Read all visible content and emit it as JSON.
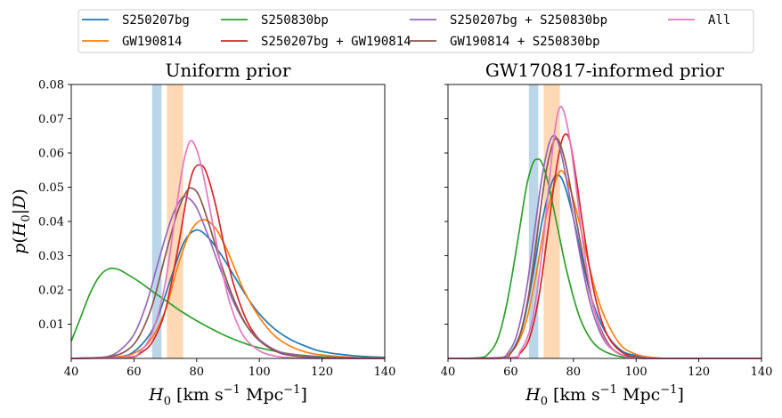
{
  "legend": {
    "placement": "top-center",
    "entries": [
      {
        "label": "S250207bg",
        "color": "#1f77b4"
      },
      {
        "label": "GW190814",
        "color": "#ff7f0e"
      },
      {
        "label": "S250830bp",
        "color": "#2ca02c"
      },
      {
        "label": "S250207bg + GW190814",
        "color": "#d62728"
      },
      {
        "label": "S250207bg + S250830bp",
        "color": "#9467bd"
      },
      {
        "label": "GW190814 + S250830bp",
        "color": "#8c564b"
      },
      {
        "label": "All",
        "color": "#e377c2"
      }
    ]
  },
  "chart_data": [
    {
      "type": "line",
      "title": "Uniform prior",
      "xlabel": "H0 [km s-1 Mpc-1]",
      "ylabel": "p(H0|D)",
      "xlim": [
        40,
        140
      ],
      "ylim": [
        0,
        0.08
      ],
      "xticks": [
        "40",
        "60",
        "80",
        "100",
        "120",
        "140"
      ],
      "yticks": [
        "0.01",
        "0.02",
        "0.03",
        "0.04",
        "0.05",
        "0.06",
        "0.07",
        "0.08"
      ],
      "grid": false,
      "shaded_bands": [
        {
          "x": [
            65.8,
            68.8
          ],
          "color": "#1f77b4"
        },
        {
          "x": [
            70.5,
            75.7
          ],
          "color": "#ff7f0e"
        }
      ],
      "series": [
        {
          "name": "S250207bg",
          "color": "#1f77b4",
          "x": [
            40,
            55,
            60,
            65,
            68,
            72,
            76,
            80,
            84,
            88,
            92,
            96,
            100,
            105,
            110,
            115,
            120,
            130,
            140
          ],
          "y": [
            0.0,
            0.0005,
            0.002,
            0.007,
            0.013,
            0.024,
            0.034,
            0.0375,
            0.035,
            0.03,
            0.024,
            0.018,
            0.013,
            0.0085,
            0.0055,
            0.0035,
            0.002,
            0.0008,
            0.0003
          ]
        },
        {
          "name": "GW190814",
          "color": "#ff7f0e",
          "x": [
            40,
            55,
            60,
            65,
            70,
            74,
            78,
            82,
            86,
            90,
            95,
            100,
            105,
            110,
            115,
            120,
            130,
            140
          ],
          "y": [
            0.0,
            0.0005,
            0.0015,
            0.005,
            0.014,
            0.027,
            0.037,
            0.0405,
            0.038,
            0.031,
            0.02,
            0.012,
            0.0065,
            0.0035,
            0.0018,
            0.001,
            0.0003,
            0.0001
          ]
        },
        {
          "name": "S250830bp",
          "color": "#2ca02c",
          "x": [
            40,
            43,
            46,
            49,
            52,
            55,
            58,
            62,
            66,
            70,
            75,
            80,
            85,
            90,
            95,
            100,
            110,
            120,
            130,
            140
          ],
          "y": [
            0.005,
            0.012,
            0.019,
            0.024,
            0.0262,
            0.026,
            0.0245,
            0.0222,
            0.0195,
            0.017,
            0.0138,
            0.011,
            0.0085,
            0.0063,
            0.0045,
            0.0031,
            0.0013,
            0.0005,
            0.0002,
            5e-05
          ]
        },
        {
          "name": "S250207bg + GW190814",
          "color": "#d62728",
          "x": [
            40,
            58,
            62,
            66,
            70,
            74,
            77,
            79,
            81,
            83,
            86,
            89,
            92,
            96,
            100,
            105,
            110,
            120,
            140
          ],
          "y": [
            0.0,
            0.0003,
            0.0015,
            0.005,
            0.014,
            0.032,
            0.048,
            0.055,
            0.0565,
            0.0545,
            0.045,
            0.032,
            0.021,
            0.011,
            0.0055,
            0.0022,
            0.0009,
            0.0002,
            0.0
          ]
        },
        {
          "name": "S250207bg + S250830bp",
          "color": "#9467bd",
          "x": [
            40,
            50,
            55,
            60,
            64,
            68,
            72,
            75,
            77,
            80,
            84,
            88,
            92,
            96,
            100,
            105,
            110,
            120,
            140
          ],
          "y": [
            0.0,
            0.0003,
            0.002,
            0.007,
            0.016,
            0.029,
            0.041,
            0.0465,
            0.047,
            0.044,
            0.035,
            0.025,
            0.016,
            0.0095,
            0.0055,
            0.0025,
            0.0012,
            0.0003,
            0.0
          ]
        },
        {
          "name": "GW190814 + S250830bp",
          "color": "#8c564b",
          "x": [
            40,
            52,
            58,
            62,
            66,
            70,
            74,
            77,
            79,
            81,
            84,
            88,
            92,
            96,
            100,
            105,
            110,
            120,
            140
          ],
          "y": [
            0.0,
            0.0005,
            0.0025,
            0.007,
            0.016,
            0.03,
            0.043,
            0.049,
            0.0495,
            0.047,
            0.039,
            0.027,
            0.017,
            0.0095,
            0.0052,
            0.0022,
            0.0009,
            0.0002,
            0.0
          ]
        },
        {
          "name": "All",
          "color": "#e377c2",
          "x": [
            40,
            58,
            62,
            66,
            70,
            74,
            76,
            78,
            80,
            82,
            85,
            88,
            91,
            95,
            100,
            105,
            110,
            120,
            140
          ],
          "y": [
            0.0,
            0.0004,
            0.002,
            0.008,
            0.022,
            0.047,
            0.058,
            0.0635,
            0.061,
            0.054,
            0.04,
            0.026,
            0.015,
            0.0065,
            0.0022,
            0.0007,
            0.0002,
            0.0,
            0.0
          ]
        }
      ]
    },
    {
      "type": "line",
      "title": "GW170817-informed prior",
      "xlabel": "H0 [km s-1 Mpc-1]",
      "ylabel": "",
      "xlim": [
        40,
        140
      ],
      "ylim": [
        0,
        0.08
      ],
      "xticks": [
        "40",
        "60",
        "80",
        "100",
        "120",
        "140"
      ],
      "yticks": [],
      "grid": false,
      "shaded_bands": [
        {
          "x": [
            65.8,
            68.8
          ],
          "color": "#1f77b4"
        },
        {
          "x": [
            70.5,
            75.7
          ],
          "color": "#ff7f0e"
        }
      ],
      "series": [
        {
          "name": "S250207bg",
          "color": "#1f77b4",
          "x": [
            40,
            55,
            58,
            61,
            64,
            67,
            70,
            73,
            75,
            77,
            80,
            83,
            86,
            90,
            95,
            100,
            105,
            110,
            120,
            140
          ],
          "y": [
            0.0,
            0.0,
            0.0005,
            0.003,
            0.01,
            0.024,
            0.04,
            0.051,
            0.0535,
            0.051,
            0.041,
            0.028,
            0.017,
            0.008,
            0.0025,
            0.0008,
            0.0002,
            0.0,
            0.0,
            0.0
          ]
        },
        {
          "name": "GW190814",
          "color": "#ff7f0e",
          "x": [
            40,
            56,
            59,
            62,
            65,
            68,
            71,
            74,
            76,
            78,
            81,
            84,
            87,
            90,
            95,
            100,
            105,
            110,
            120,
            140
          ],
          "y": [
            0.0,
            0.0,
            0.001,
            0.004,
            0.011,
            0.024,
            0.04,
            0.051,
            0.0548,
            0.052,
            0.043,
            0.031,
            0.02,
            0.012,
            0.004,
            0.0012,
            0.0003,
            0.0,
            0.0,
            0.0
          ]
        },
        {
          "name": "S250830bp",
          "color": "#2ca02c",
          "x": [
            40,
            50,
            53,
            56,
            59,
            62,
            65,
            67,
            68.5,
            70,
            72,
            75,
            78,
            82,
            86,
            90,
            95,
            100,
            110,
            140
          ],
          "y": [
            0.0,
            0.0002,
            0.0015,
            0.006,
            0.017,
            0.033,
            0.05,
            0.0568,
            0.0582,
            0.057,
            0.051,
            0.038,
            0.025,
            0.012,
            0.005,
            0.002,
            0.0005,
            0.0001,
            0.0,
            0.0
          ]
        },
        {
          "name": "S250207bg + GW190814",
          "color": "#d62728",
          "x": [
            40,
            60,
            63,
            66,
            69,
            72,
            74,
            76,
            77.5,
            79,
            81,
            83,
            86,
            89,
            92,
            96,
            100,
            105,
            120,
            140
          ],
          "y": [
            0.0,
            0.0002,
            0.0015,
            0.006,
            0.018,
            0.038,
            0.052,
            0.0625,
            0.0655,
            0.063,
            0.052,
            0.039,
            0.022,
            0.011,
            0.005,
            0.0015,
            0.0004,
            0.0,
            0.0,
            0.0
          ]
        },
        {
          "name": "S250207bg + S250830bp",
          "color": "#9467bd",
          "x": [
            40,
            56,
            59,
            62,
            65,
            68,
            70,
            72,
            73.5,
            75,
            77,
            80,
            83,
            86,
            90,
            95,
            100,
            105,
            120,
            140
          ],
          "y": [
            0.0,
            0.0002,
            0.0015,
            0.007,
            0.02,
            0.04,
            0.053,
            0.062,
            0.065,
            0.0635,
            0.056,
            0.041,
            0.026,
            0.014,
            0.005,
            0.0012,
            0.0002,
            0.0,
            0.0,
            0.0
          ]
        },
        {
          "name": "GW190814 + S250830bp",
          "color": "#8c564b",
          "x": [
            40,
            57,
            60,
            63,
            66,
            69,
            71,
            73,
            74.5,
            76,
            78,
            81,
            84,
            87,
            91,
            95,
            100,
            105,
            120,
            140
          ],
          "y": [
            0.0,
            0.0002,
            0.0015,
            0.007,
            0.02,
            0.04,
            0.053,
            0.0615,
            0.0643,
            0.062,
            0.055,
            0.04,
            0.025,
            0.013,
            0.0045,
            0.0012,
            0.0002,
            0.0,
            0.0,
            0.0
          ]
        },
        {
          "name": "All",
          "color": "#e377c2",
          "x": [
            40,
            60,
            63,
            66,
            68,
            70,
            72,
            74,
            75.5,
            77,
            79,
            81,
            83,
            86,
            89,
            92,
            96,
            100,
            120,
            140
          ],
          "y": [
            0.0,
            0.0002,
            0.002,
            0.008,
            0.017,
            0.031,
            0.049,
            0.066,
            0.073,
            0.072,
            0.063,
            0.049,
            0.034,
            0.017,
            0.0075,
            0.003,
            0.0007,
            0.0001,
            0.0,
            0.0
          ]
        }
      ]
    }
  ]
}
